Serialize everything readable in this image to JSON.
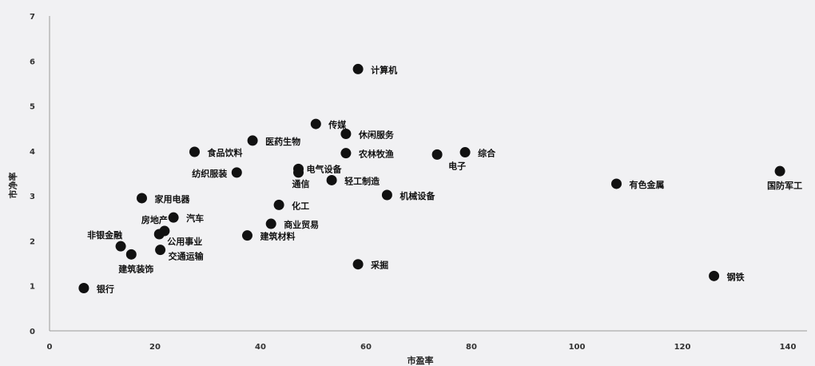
{
  "chart_data": {
    "type": "scatter",
    "xlabel": "市盈率",
    "ylabel": "市净率",
    "xlim": [
      0,
      140
    ],
    "ylim": [
      0,
      7
    ],
    "xticks": [
      0,
      20,
      40,
      60,
      80,
      100,
      120,
      140
    ],
    "yticks": [
      0,
      1,
      2,
      3,
      4,
      5,
      6,
      7
    ],
    "points": [
      {
        "label": "计算机",
        "x": 58.5,
        "y": 5.82
      },
      {
        "label": "传媒",
        "x": 50.5,
        "y": 4.6
      },
      {
        "label": "休闲服务",
        "x": 56.2,
        "y": 4.38
      },
      {
        "label": "医药生物",
        "x": 38.5,
        "y": 4.23
      },
      {
        "label": "食品饮料",
        "x": 27.5,
        "y": 3.98
      },
      {
        "label": "农林牧渔",
        "x": 56.2,
        "y": 3.95
      },
      {
        "label": "电子",
        "x": 73.5,
        "y": 3.92
      },
      {
        "label": "综合",
        "x": 78.8,
        "y": 3.97
      },
      {
        "label": "电气设备",
        "x": 47.2,
        "y": 3.6
      },
      {
        "label": "通信",
        "x": 47.2,
        "y": 3.52
      },
      {
        "label": "纺织服装",
        "x": 35.5,
        "y": 3.52
      },
      {
        "label": "轻工制造",
        "x": 53.5,
        "y": 3.35
      },
      {
        "label": "有色金属",
        "x": 107.5,
        "y": 3.27
      },
      {
        "label": "国防军工",
        "x": 138.5,
        "y": 3.55
      },
      {
        "label": "机械设备",
        "x": 64.0,
        "y": 3.02
      },
      {
        "label": "家用电器",
        "x": 17.5,
        "y": 2.95
      },
      {
        "label": "化工",
        "x": 43.5,
        "y": 2.8
      },
      {
        "label": "汽车",
        "x": 23.5,
        "y": 2.52
      },
      {
        "label": "商业贸易",
        "x": 42.0,
        "y": 2.38
      },
      {
        "label": "房地产",
        "x": 21.8,
        "y": 2.22
      },
      {
        "label": "公用事业",
        "x": 20.8,
        "y": 2.15
      },
      {
        "label": "建筑材料",
        "x": 37.5,
        "y": 2.12
      },
      {
        "label": "非银金融",
        "x": 13.5,
        "y": 1.88
      },
      {
        "label": "交通运输",
        "x": 21.0,
        "y": 1.8
      },
      {
        "label": "建筑装饰",
        "x": 15.5,
        "y": 1.7
      },
      {
        "label": "采掘",
        "x": 58.5,
        "y": 1.48
      },
      {
        "label": "钢铁",
        "x": 126.0,
        "y": 1.22
      },
      {
        "label": "银行",
        "x": 6.5,
        "y": 0.95
      }
    ]
  }
}
